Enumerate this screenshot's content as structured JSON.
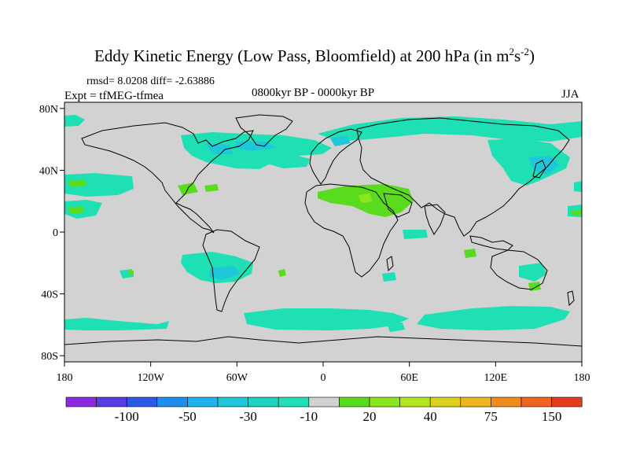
{
  "title": {
    "main": "Eddy Kinetic Energy (Low Pass, Bloomfield) at 200 hPa (in m",
    "sup1": "2",
    "mid": "s",
    "sup2": "-2",
    "end": ")"
  },
  "stats": "rmsd= 8.0208 diff= -2.63886",
  "experiment": "Expt = tfMEG-tfmea",
  "period": "0800kyr BP - 0000kyr BP",
  "season": "JJA",
  "axes": {
    "y_ticks": [
      {
        "label": "80N",
        "lat": 80
      },
      {
        "label": "40N",
        "lat": 40
      },
      {
        "label": "0",
        "lat": 0
      },
      {
        "label": "40S",
        "lat": -40
      },
      {
        "label": "80S",
        "lat": -80
      }
    ],
    "x_ticks": [
      {
        "label": "180",
        "lon": -180
      },
      {
        "label": "120W",
        "lon": -120
      },
      {
        "label": "60W",
        "lon": -60
      },
      {
        "label": "0",
        "lon": 0
      },
      {
        "label": "60E",
        "lon": 60
      },
      {
        "label": "120E",
        "lon": 120
      },
      {
        "label": "180",
        "lon": 180
      }
    ]
  },
  "colorbar": {
    "colors": [
      "#8a2be2",
      "#5a3ce0",
      "#2a5ae6",
      "#1e8cf0",
      "#1eb4f0",
      "#1ec8d8",
      "#1ed2c0",
      "#1ee0b4",
      "#d2d2d2",
      "#5adc1e",
      "#8ce61e",
      "#b4e61e",
      "#dcd21e",
      "#f0b41e",
      "#f08c1e",
      "#f0641e",
      "#e63c1e"
    ],
    "labels": [
      {
        "text": "-100",
        "boundary": 2
      },
      {
        "text": "-50",
        "boundary": 4
      },
      {
        "text": "-30",
        "boundary": 6
      },
      {
        "text": "-10",
        "boundary": 8
      },
      {
        "text": "20",
        "boundary": 10
      },
      {
        "text": "40",
        "boundary": 12
      },
      {
        "text": "75",
        "boundary": 14
      },
      {
        "text": "150",
        "boundary": 16
      }
    ]
  },
  "map_colors": {
    "background": "#d2d2d2",
    "cyan": "#1ee0b4",
    "blue": "#1ec8d8",
    "green": "#5adc1e",
    "lime": "#8ce61e"
  }
}
